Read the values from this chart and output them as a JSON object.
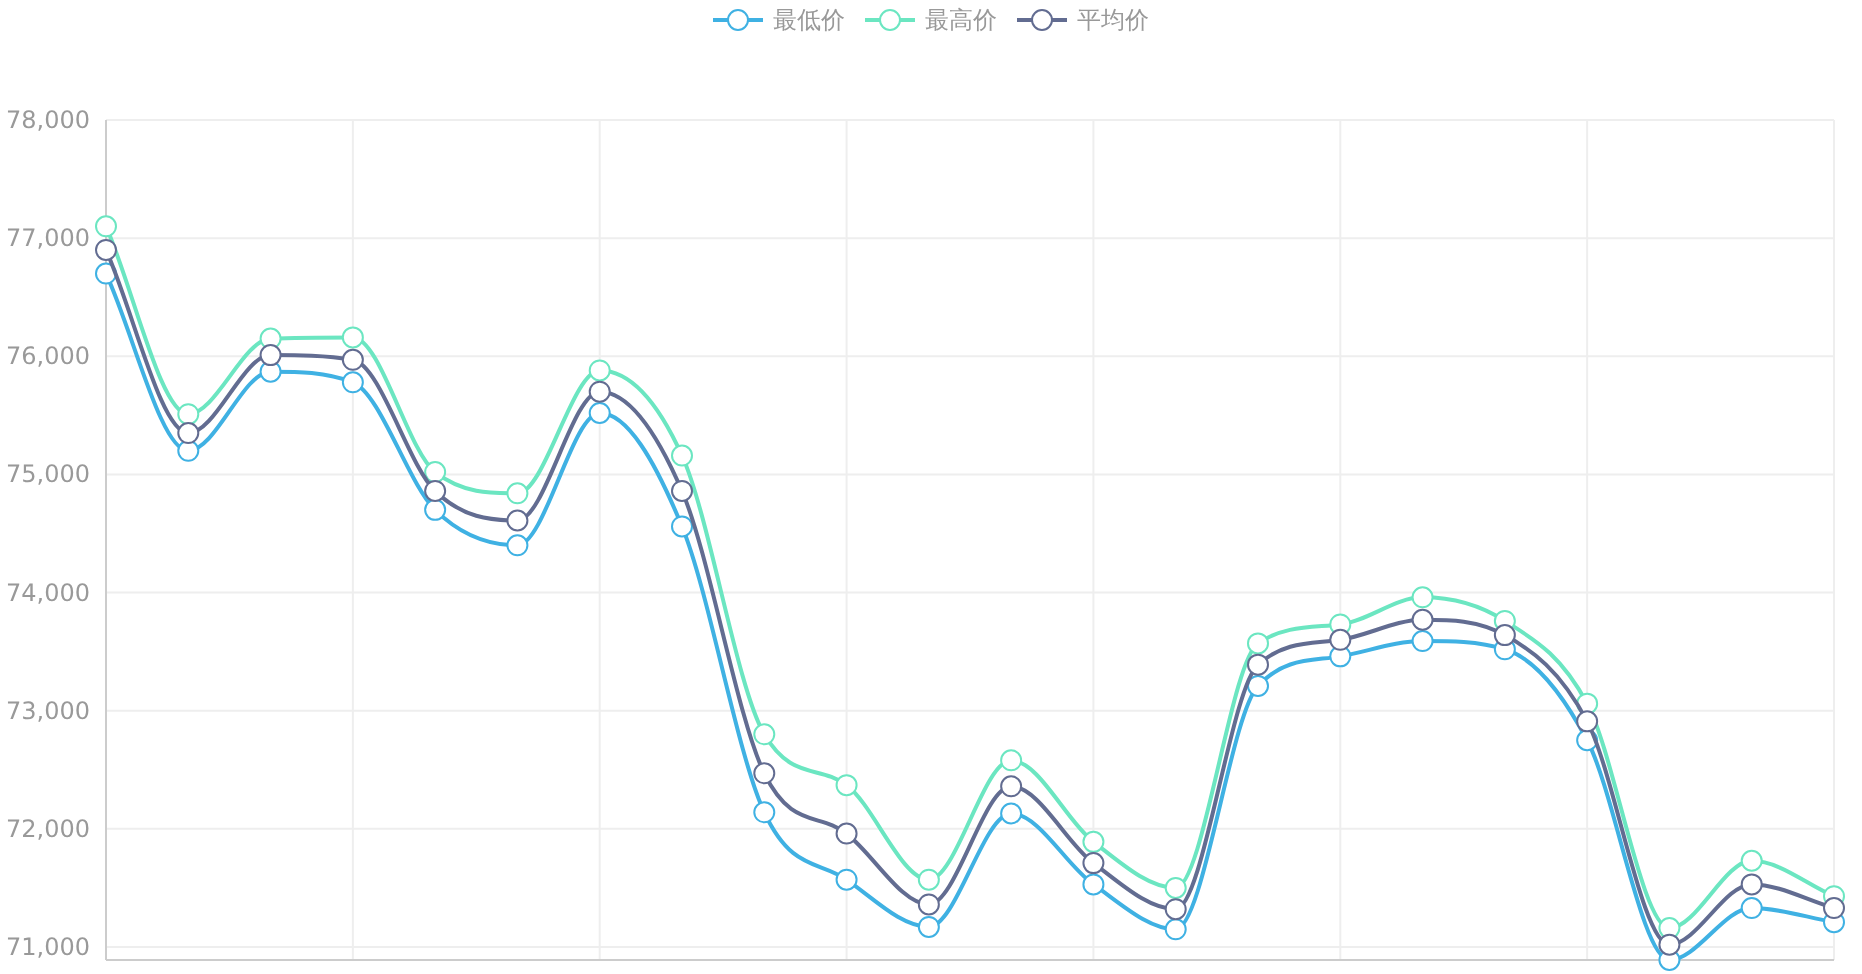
{
  "chart_data": {
    "type": "line",
    "categories": [
      null,
      null,
      null,
      null,
      null,
      null,
      null,
      null,
      null,
      null,
      null,
      null,
      null,
      null,
      null,
      null,
      null,
      null,
      null,
      null,
      null,
      null
    ],
    "series": [
      {
        "name": "最低价",
        "color": "#3fb1e3",
        "values": [
          76700,
          75200,
          75870,
          75780,
          74700,
          74400,
          75520,
          74560,
          72140,
          71570,
          71170,
          72130,
          71530,
          71150,
          73210,
          73460,
          73590,
          73520,
          72750,
          70890,
          71330,
          71210
        ]
      },
      {
        "name": "最高价",
        "color": "#6be6c1",
        "values": [
          77100,
          75510,
          76150,
          76160,
          75020,
          74840,
          75880,
          75160,
          72800,
          72370,
          71570,
          72580,
          71890,
          71500,
          73570,
          73730,
          73960,
          73760,
          73060,
          71160,
          71730,
          71430
        ]
      },
      {
        "name": "平均价",
        "color": "#626c91",
        "values": [
          76900,
          75350,
          76010,
          75970,
          74860,
          74610,
          75700,
          74860,
          72470,
          71960,
          71360,
          72360,
          71710,
          71320,
          73390,
          73600,
          73770,
          73640,
          72910,
          71020,
          71530,
          71330
        ]
      }
    ],
    "ylim": [
      70890,
      78000
    ],
    "yticks": [
      {
        "value": 71000,
        "label": "71,000"
      },
      {
        "value": 72000,
        "label": "72,000"
      },
      {
        "value": 73000,
        "label": "73,000"
      },
      {
        "value": 74000,
        "label": "74,000"
      },
      {
        "value": 75000,
        "label": "75,000"
      },
      {
        "value": 76000,
        "label": "76,000"
      },
      {
        "value": 77000,
        "label": "77,000"
      },
      {
        "value": 78000,
        "label": "78,000"
      }
    ],
    "grid": true,
    "legend": "top",
    "marker": "circle",
    "line_style": "solid"
  }
}
